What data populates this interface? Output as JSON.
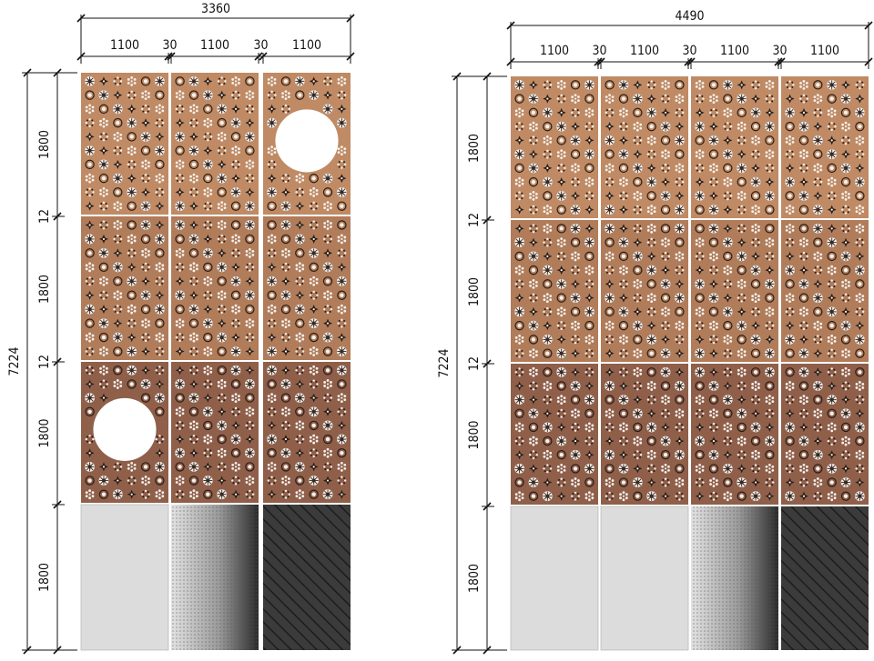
{
  "left_elevation": {
    "overall_width": "3360",
    "overall_height": "7224",
    "column_widths": [
      "1100",
      "1100",
      "1100"
    ],
    "joint_widths": [
      "30",
      "30"
    ],
    "row_heights": [
      "1800",
      "1800",
      "1800",
      "1800"
    ],
    "row_joints": [
      "12",
      "12"
    ],
    "panel_rows": [
      [
        "perforated",
        "perforated",
        "perforated-opening"
      ],
      [
        "perforated",
        "perforated",
        "perforated"
      ],
      [
        "perforated-opening",
        "perforated",
        "perforated"
      ],
      [
        "solid-light-grey",
        "gradient-dot-perforated",
        "dark-hatched"
      ]
    ]
  },
  "right_elevation": {
    "overall_width": "4490",
    "overall_height": "7224",
    "column_widths": [
      "1100",
      "1100",
      "1100",
      "1100"
    ],
    "joint_widths": [
      "30",
      "30",
      "30"
    ],
    "row_heights": [
      "1800",
      "1800",
      "1800",
      "1800"
    ],
    "row_joints": [
      "12",
      "12"
    ],
    "panel_rows": [
      [
        "perforated",
        "perforated",
        "perforated",
        "perforated"
      ],
      [
        "perforated",
        "perforated",
        "perforated",
        "perforated"
      ],
      [
        "perforated",
        "perforated",
        "perforated",
        "perforated"
      ],
      [
        "solid-light-grey",
        "solid-light-grey",
        "gradient-dot-perforated",
        "dark-hatched"
      ]
    ]
  },
  "colors": {
    "panel_top": "#bf8a64",
    "panel_mid": "#b07c5a",
    "panel_bottom": "#8f5f4a",
    "perforation_light": "#f3f1ee",
    "perforation_dark": "#2a1d16",
    "solid_light_grey": "#dcdcdc",
    "dark_hatch_base": "#3b3b3b",
    "dimension_line": "#111111"
  }
}
